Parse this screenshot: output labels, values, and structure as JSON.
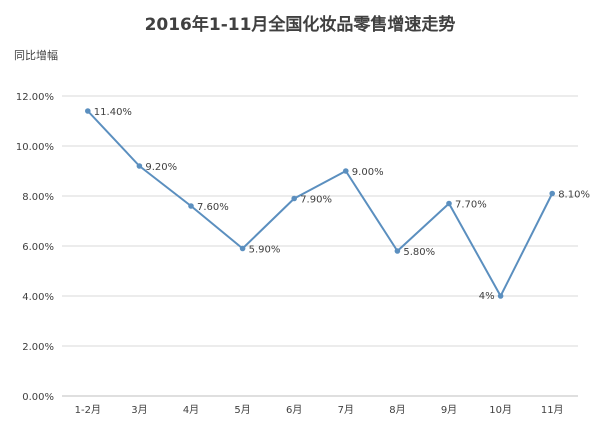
{
  "chart_data": {
    "type": "line",
    "title": "2016年1-11月全国化妆品零售增速走势",
    "ylabel": "同比增幅",
    "xlabel": "",
    "categories": [
      "1-2月",
      "3月",
      "4月",
      "5月",
      "6月",
      "7月",
      "8月",
      "9月",
      "10月",
      "11月"
    ],
    "series": [
      {
        "values": [
          11.4,
          9.2,
          7.6,
          5.9,
          7.9,
          9.0,
          5.8,
          7.7,
          4.0,
          8.1
        ],
        "labels": [
          "11.40%",
          "9.20%",
          "7.60%",
          "5.90%",
          "7.90%",
          "9.00%",
          "5.80%",
          "7.70%",
          "4%",
          "8.10%"
        ],
        "color": "#5b8fbf"
      }
    ],
    "ylim": [
      0,
      12
    ],
    "yticks": [
      0,
      2,
      4,
      6,
      8,
      10,
      12
    ],
    "ytick_labels": [
      "0.00%",
      "2.00%",
      "4.00%",
      "6.00%",
      "8.00%",
      "10.00%",
      "12.00%"
    ],
    "grid": true,
    "gridline_color": "#d9d9d9",
    "axis_text_color": "#404040",
    "legend": "none"
  }
}
